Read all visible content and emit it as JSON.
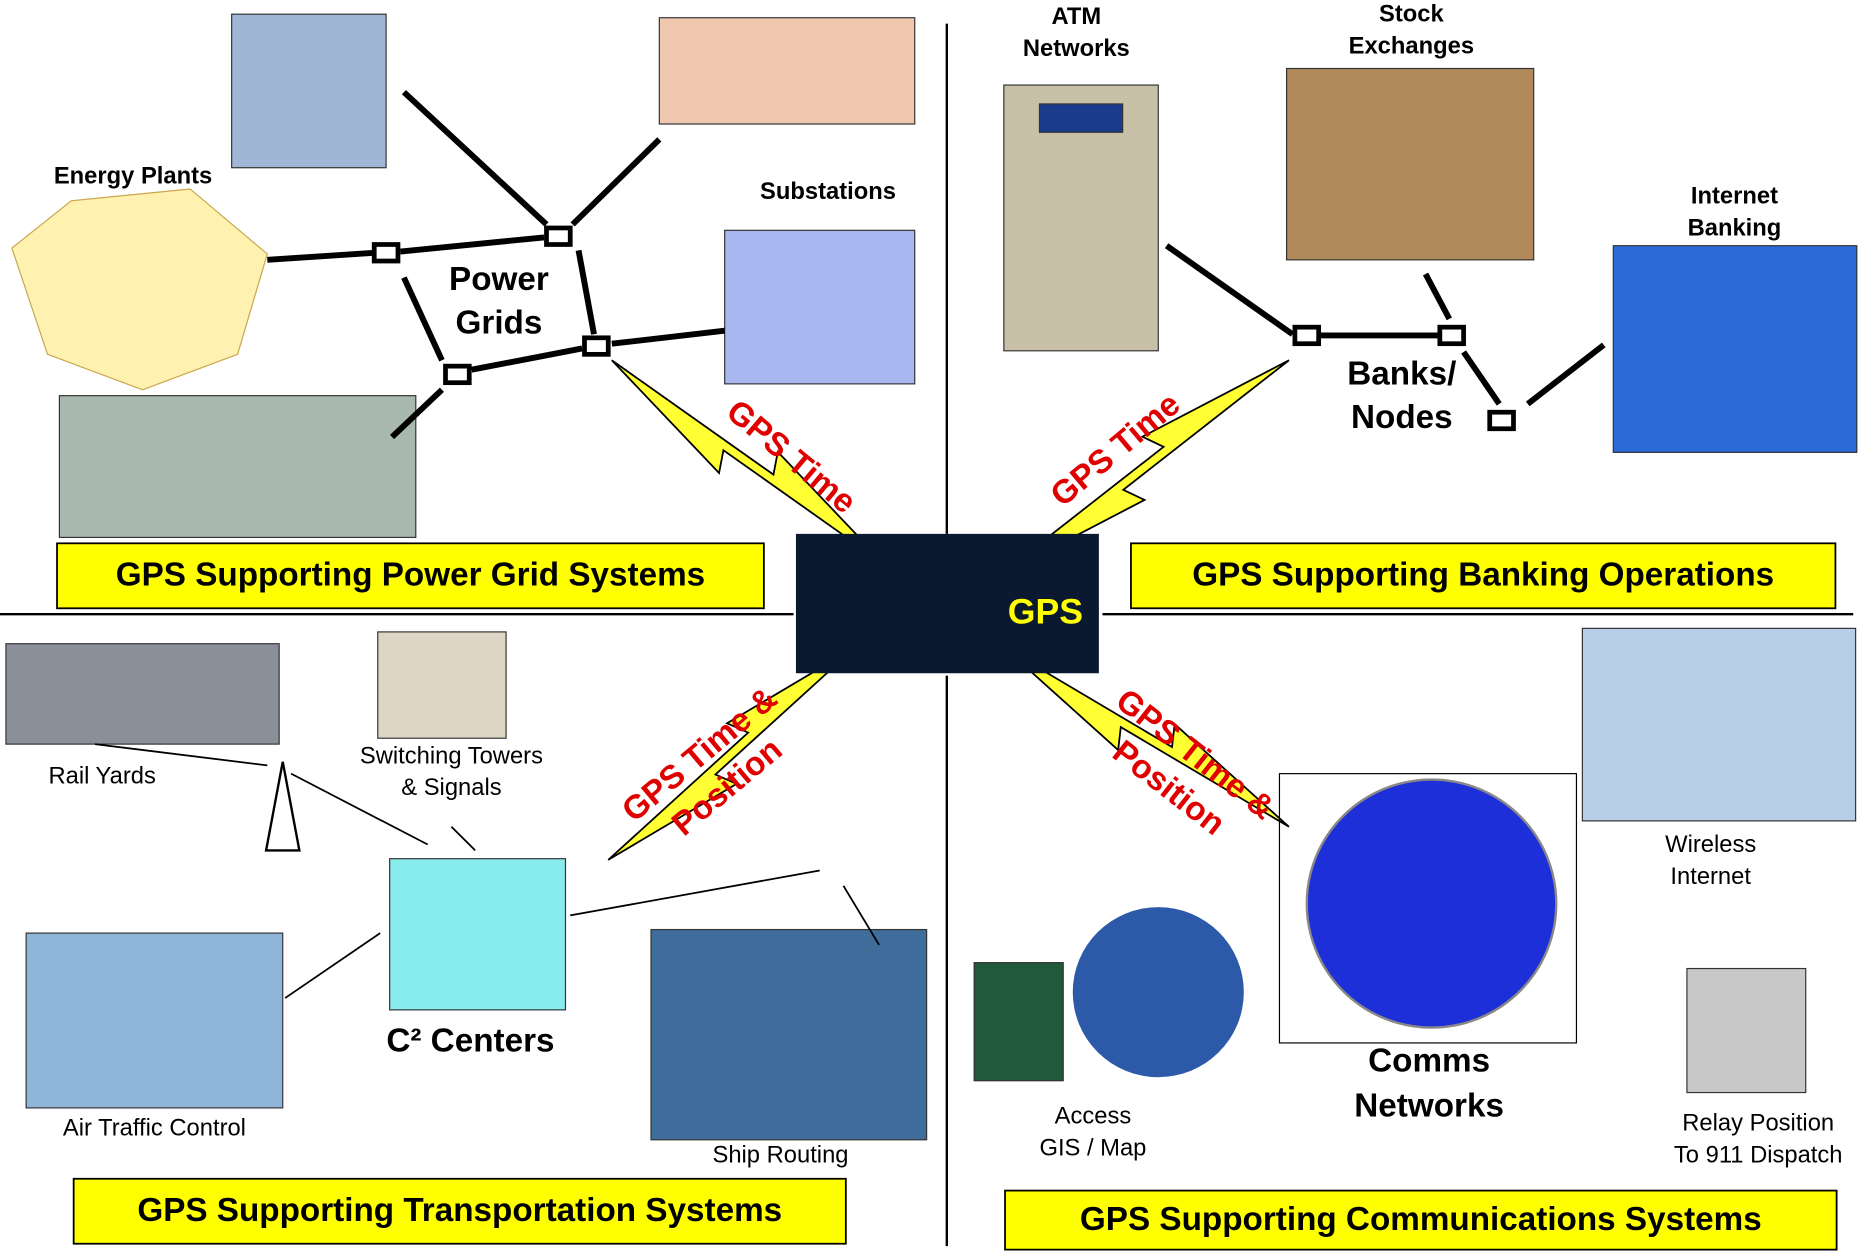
{
  "center": {
    "label": "GPS"
  },
  "quadrants": [
    {
      "title": "GPS Supporting Power Grid Systems",
      "hub": [
        "Power",
        "Grids"
      ],
      "link": [
        "GPS Time"
      ],
      "labels": [
        [
          "Energy Plants"
        ],
        [
          "Substations"
        ]
      ]
    },
    {
      "title": "GPS Supporting Banking Operations",
      "hub": [
        "Banks/",
        "Nodes"
      ],
      "link": [
        "GPS Time"
      ],
      "labels": [
        [
          "ATM",
          "Networks"
        ],
        [
          "Stock",
          "Exchanges"
        ],
        [
          "Internet",
          "Banking"
        ]
      ]
    },
    {
      "title": "GPS Supporting Transportation Systems",
      "hub": [
        "C² Centers"
      ],
      "link": [
        "GPS Time &",
        "Position"
      ],
      "labels": [
        [
          "Rail Yards"
        ],
        [
          "Switching Towers",
          "& Signals"
        ],
        [
          "Air Traffic Control"
        ],
        [
          "Ship Routing"
        ]
      ]
    },
    {
      "title": "GPS Supporting Communications Systems",
      "hub": [
        "Comms",
        "Networks"
      ],
      "link": [
        "GPS Time &",
        "Position"
      ],
      "labels": [
        [
          "Wireless",
          "Internet"
        ],
        [
          "Access",
          "GIS / Map"
        ],
        [
          "Relay Position",
          "To 911 Dispatch"
        ]
      ]
    }
  ]
}
